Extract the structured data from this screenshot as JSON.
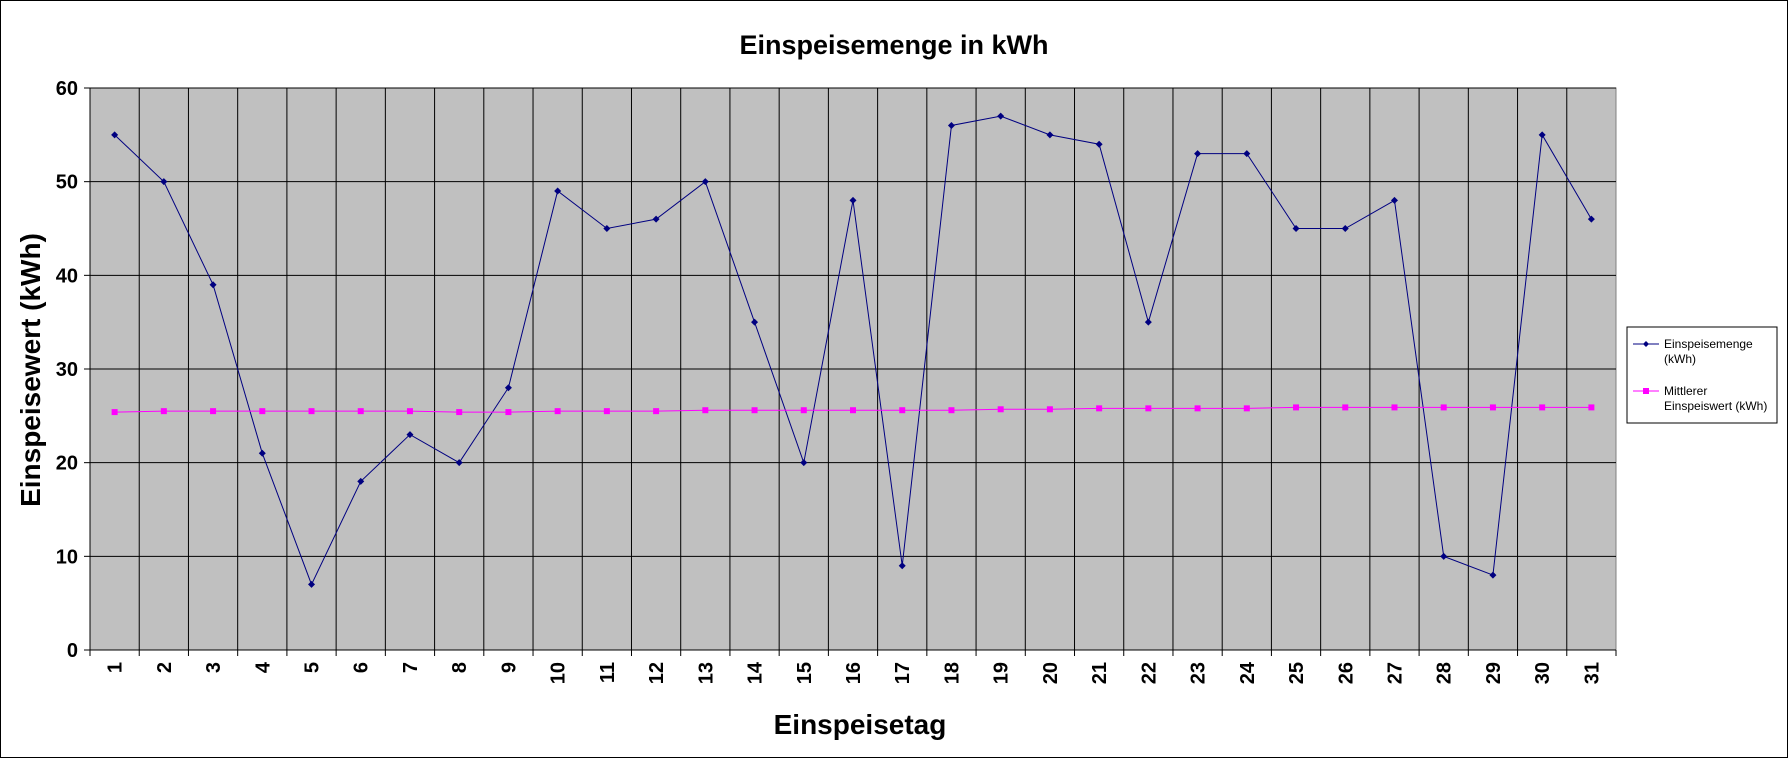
{
  "chart_data": {
    "type": "line",
    "title": "Einspeisemenge in kWh",
    "xlabel": "Einspeisetag",
    "ylabel": "Einspeisewert  (kWh)",
    "ylim": [
      0,
      60
    ],
    "yticks": [
      0,
      10,
      20,
      30,
      40,
      50,
      60
    ],
    "grid": true,
    "legend_position": "right",
    "plot_background": "#c0c0c0",
    "categories": [
      "1",
      "2",
      "3",
      "4",
      "5",
      "6",
      "7",
      "8",
      "9",
      "10",
      "11",
      "12",
      "13",
      "14",
      "15",
      "16",
      "17",
      "18",
      "19",
      "20",
      "21",
      "22",
      "23",
      "24",
      "25",
      "26",
      "27",
      "28",
      "29",
      "30",
      "31"
    ],
    "series": [
      {
        "name": "Einspeisemenge (kWh)",
        "legend_lines": [
          "Einspeisemenge",
          "(kWh)"
        ],
        "color": "#000080",
        "marker": "diamond",
        "values": [
          55,
          50,
          39,
          21,
          7,
          18,
          23,
          20,
          28,
          49,
          45,
          46,
          50,
          35,
          20,
          48,
          9,
          56,
          57,
          55,
          54,
          35,
          53,
          53,
          45,
          45,
          48,
          10,
          8,
          55,
          46
        ]
      },
      {
        "name": "Mittlerer Einspeiswert (kWh)",
        "legend_lines": [
          "Mittlerer",
          "Einspeiswert (kWh)"
        ],
        "color": "#ff00ff",
        "marker": "square",
        "values": [
          25.4,
          25.5,
          25.5,
          25.5,
          25.5,
          25.5,
          25.5,
          25.4,
          25.4,
          25.5,
          25.5,
          25.5,
          25.6,
          25.6,
          25.6,
          25.6,
          25.6,
          25.6,
          25.7,
          25.7,
          25.8,
          25.8,
          25.8,
          25.8,
          25.9,
          25.9,
          25.9,
          25.9,
          25.9,
          25.9,
          25.9
        ]
      }
    ]
  }
}
